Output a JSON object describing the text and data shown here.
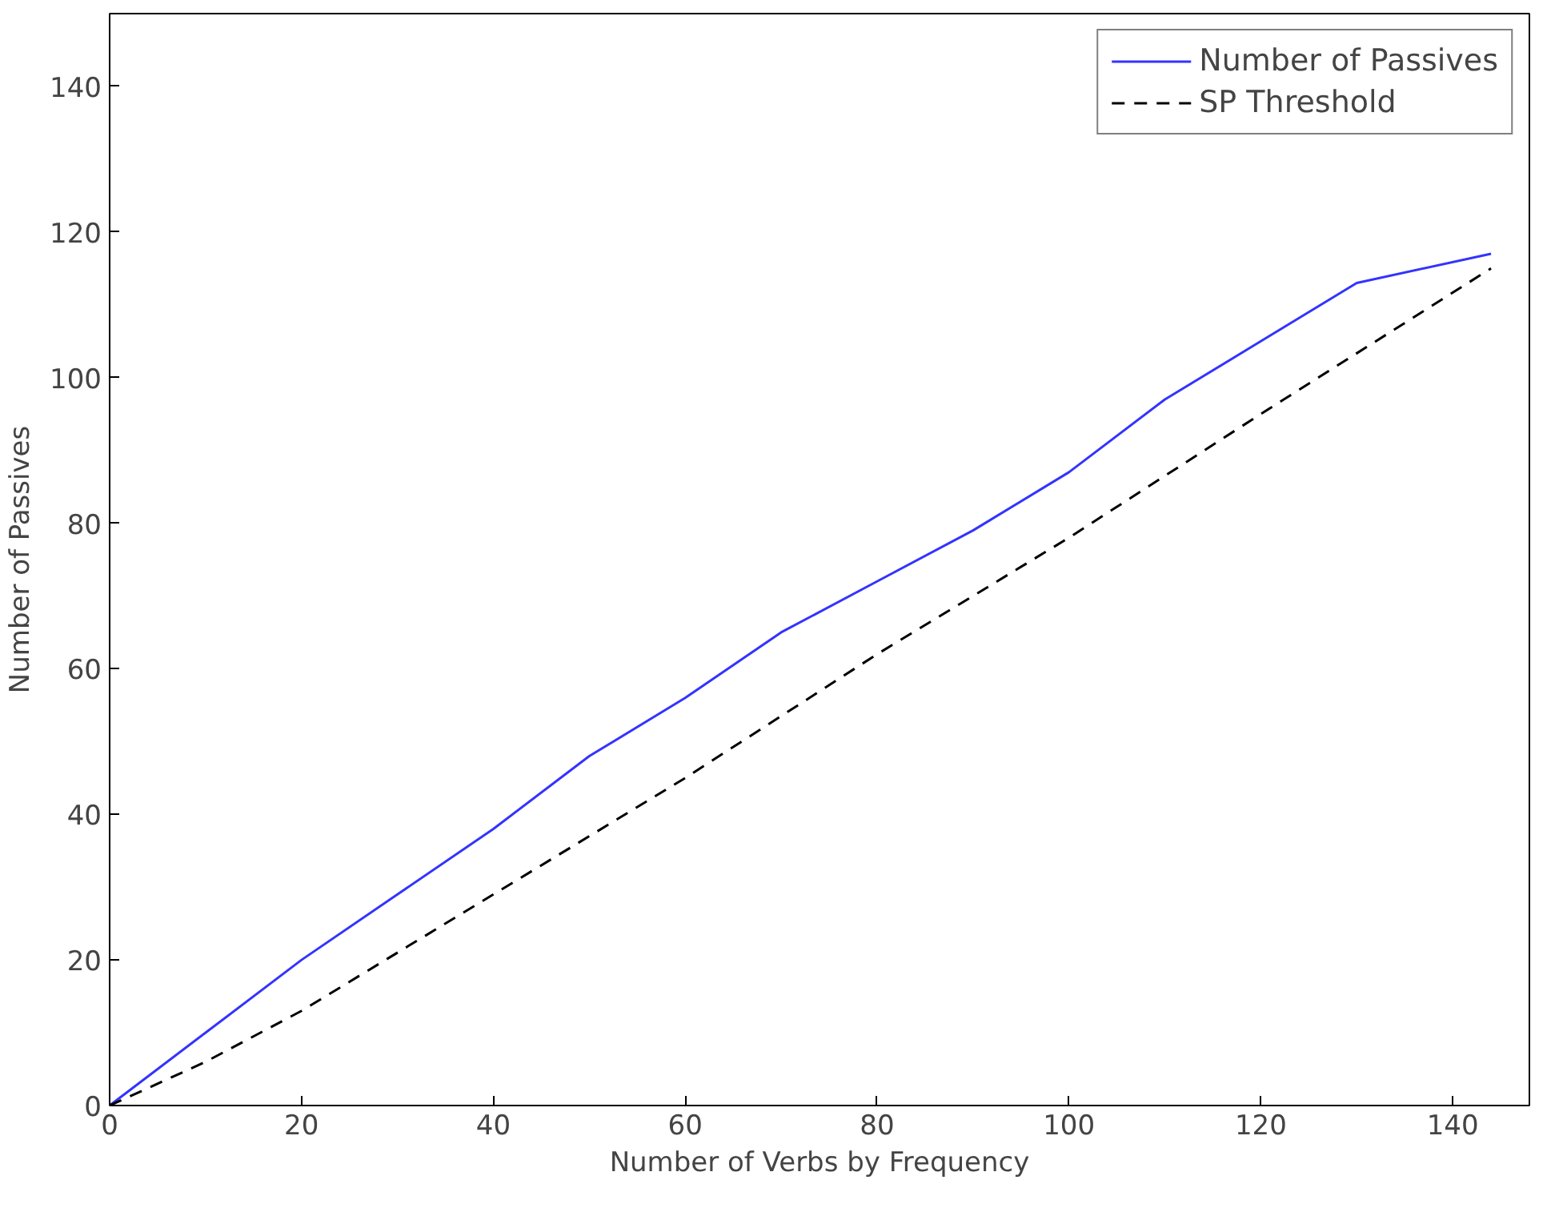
{
  "chart_data": {
    "type": "line",
    "xlabel": "Number of Verbs by Frequency",
    "ylabel": "Number of Passives",
    "xlim": [
      0,
      148
    ],
    "ylim": [
      0,
      150
    ],
    "xticks": [
      0,
      20,
      40,
      60,
      80,
      100,
      120,
      140
    ],
    "yticks": [
      0,
      20,
      40,
      60,
      80,
      100,
      120,
      140
    ],
    "grid": false,
    "legend": "top right",
    "series": [
      {
        "name": "Number of Passives",
        "color": "#3333ff",
        "line_style": "solid",
        "x": [
          0,
          10,
          20,
          30,
          40,
          50,
          60,
          70,
          80,
          90,
          100,
          110,
          120,
          130,
          144
        ],
        "values": [
          0,
          10,
          20,
          29,
          38,
          48,
          56,
          65,
          72,
          79,
          87,
          97,
          105,
          113,
          117
        ]
      },
      {
        "name": "SP Threshold",
        "color": "#000000",
        "line_style": "dashed",
        "x": [
          0,
          10,
          20,
          40,
          60,
          80,
          100,
          120,
          144
        ],
        "values": [
          0,
          6,
          13,
          29,
          45,
          62,
          78,
          95,
          115
        ]
      }
    ]
  }
}
